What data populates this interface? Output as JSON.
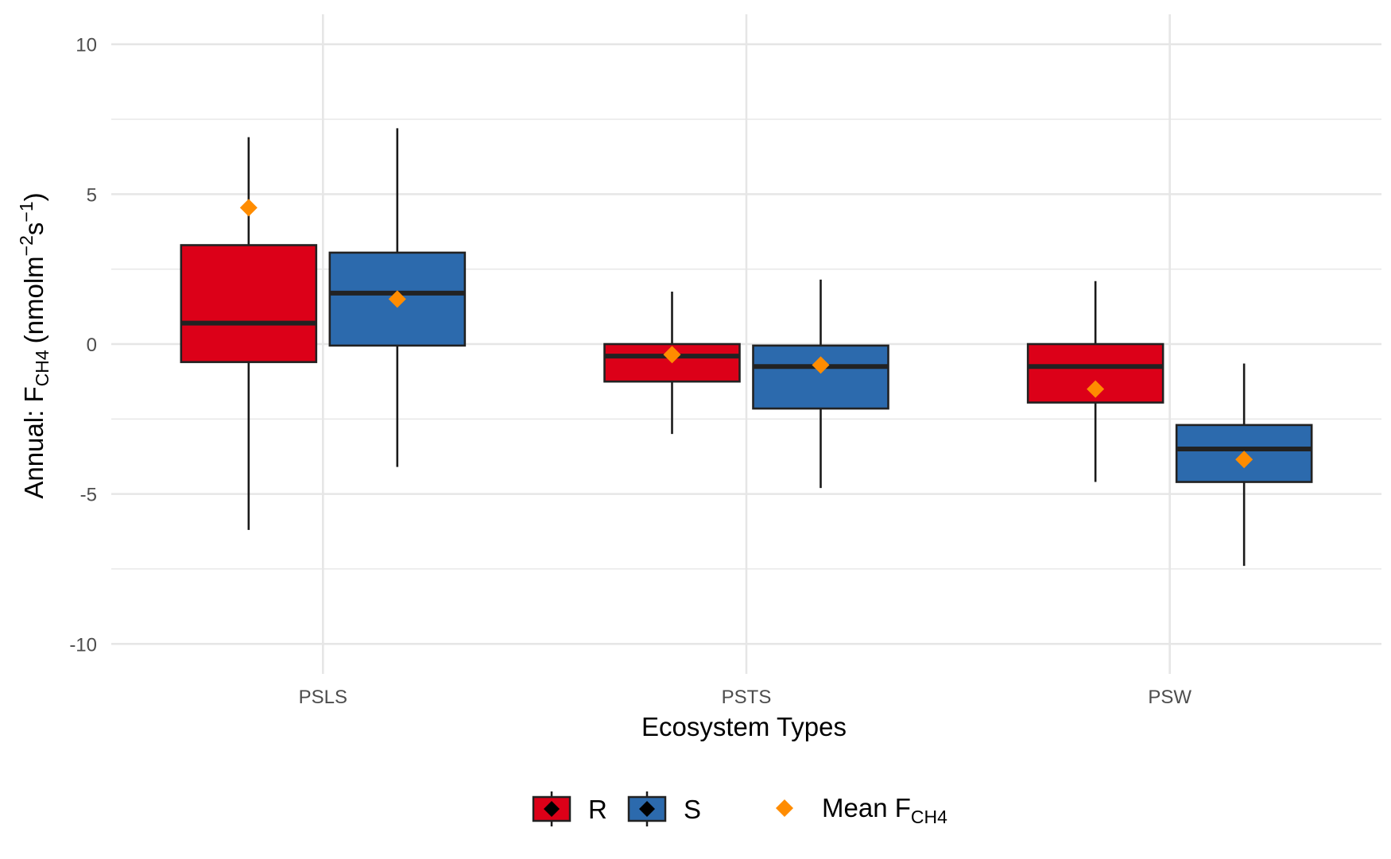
{
  "chart_data": {
    "type": "box",
    "xlabel": "Ecosystem Types",
    "ylabel": {
      "prefix": "Annual: F",
      "subscript": "CH4",
      "unit_open": "(nmolm",
      "unit_exp1": "−2",
      "unit_mid": "s",
      "unit_exp2": "−1",
      "unit_close": ")"
    },
    "categories": [
      "PSLS",
      "PSTS",
      "PSW"
    ],
    "ylim": [
      -11,
      11
    ],
    "yticks": [
      -10,
      -5,
      0,
      5,
      10
    ],
    "yticklabels": [
      "-10",
      "-5",
      "0",
      "5",
      "10"
    ],
    "grid": true,
    "legend_position": "bottom",
    "series": [
      {
        "name": "R",
        "color": "#DC0018",
        "boxes": [
          {
            "category": "PSLS",
            "whisker_low": -6.2,
            "q1": -0.6,
            "median": 0.7,
            "q3": 3.3,
            "whisker_high": 6.9,
            "mean": 4.55
          },
          {
            "category": "PSTS",
            "whisker_low": -3.0,
            "q1": -1.25,
            "median": -0.4,
            "q3": 0.0,
            "whisker_high": 1.75,
            "mean": -0.35
          },
          {
            "category": "PSW",
            "whisker_low": -4.6,
            "q1": -1.95,
            "median": -0.75,
            "q3": 0.0,
            "whisker_high": 2.1,
            "mean": -1.5
          }
        ]
      },
      {
        "name": "S",
        "color": "#2C6AAD",
        "boxes": [
          {
            "category": "PSLS",
            "whisker_low": -4.1,
            "q1": -0.05,
            "median": 1.7,
            "q3": 3.05,
            "whisker_high": 7.2,
            "mean": 1.5
          },
          {
            "category": "PSTS",
            "whisker_low": -4.8,
            "q1": -2.15,
            "median": -0.75,
            "q3": -0.05,
            "whisker_high": 2.15,
            "mean": -0.7
          },
          {
            "category": "PSW",
            "whisker_low": -7.4,
            "q1": -4.6,
            "median": -3.5,
            "q3": -2.7,
            "whisker_high": -0.65,
            "mean": -3.85
          }
        ]
      }
    ],
    "mean_marker": {
      "label_prefix": "Mean F",
      "label_subscript": "CH4",
      "color": "#FF8C00"
    }
  }
}
